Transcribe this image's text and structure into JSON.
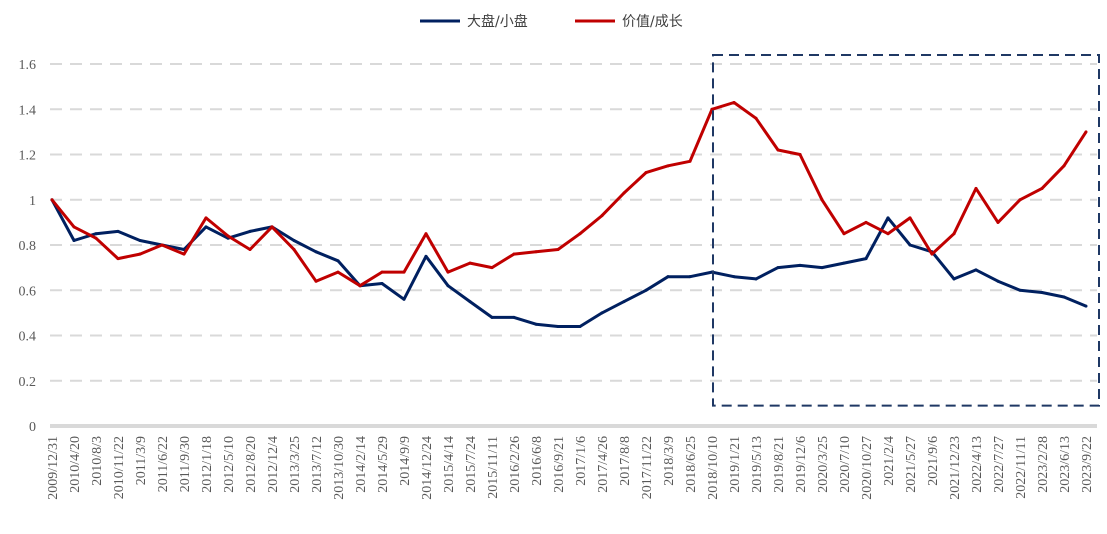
{
  "chart_data": {
    "type": "line",
    "title": "",
    "xlabel": "",
    "ylabel": "",
    "ylim": [
      0,
      1.6
    ],
    "yticks": [
      "0",
      "0.2",
      "0.4",
      "0.6",
      "0.8",
      "1",
      "1.2",
      "1.4",
      "1.6"
    ],
    "grid": "horizontal dashed",
    "legend_position": "top",
    "x": [
      "2009/12/31",
      "2010/4/20",
      "2010/8/3",
      "2010/11/22",
      "2011/3/9",
      "2011/6/22",
      "2011/9/30",
      "2012/1/18",
      "2012/5/10",
      "2012/8/20",
      "2012/12/4",
      "2013/3/25",
      "2013/7/12",
      "2013/10/30",
      "2014/2/14",
      "2014/5/29",
      "2014/9/9",
      "2014/12/24",
      "2015/4/14",
      "2015/7/24",
      "2015/11/11",
      "2016/2/26",
      "2016/6/8",
      "2016/9/21",
      "2017/1/6",
      "2017/4/26",
      "2017/8/8",
      "2017/11/22",
      "2018/3/9",
      "2018/6/25",
      "2018/10/10",
      "2019/1/21",
      "2019/5/13",
      "2019/8/21",
      "2019/12/6",
      "2020/3/25",
      "2020/7/10",
      "2020/10/27",
      "2021/2/4",
      "2021/5/27",
      "2021/9/6",
      "2021/12/23",
      "2022/4/13",
      "2022/7/27",
      "2022/11/11",
      "2023/2/28",
      "2023/6/13",
      "2023/9/22"
    ],
    "series": [
      {
        "name": "大盘/小盘",
        "color": "#002060",
        "values": [
          1.0,
          0.82,
          0.85,
          0.86,
          0.82,
          0.8,
          0.78,
          0.88,
          0.83,
          0.86,
          0.88,
          0.82,
          0.77,
          0.73,
          0.62,
          0.63,
          0.56,
          0.75,
          0.62,
          0.55,
          0.48,
          0.48,
          0.45,
          0.44,
          0.44,
          0.5,
          0.55,
          0.6,
          0.66,
          0.66,
          0.68,
          0.66,
          0.65,
          0.7,
          0.71,
          0.7,
          0.72,
          0.74,
          0.92,
          0.8,
          0.77,
          0.65,
          0.69,
          0.64,
          0.6,
          0.59,
          0.57,
          0.53
        ]
      },
      {
        "name": "价值/成长",
        "color": "#C00000",
        "values": [
          1.0,
          0.88,
          0.83,
          0.74,
          0.76,
          0.8,
          0.76,
          0.92,
          0.84,
          0.78,
          0.88,
          0.78,
          0.64,
          0.68,
          0.62,
          0.68,
          0.68,
          0.85,
          0.68,
          0.72,
          0.7,
          0.76,
          0.77,
          0.78,
          0.85,
          0.93,
          1.03,
          1.12,
          1.15,
          1.17,
          1.4,
          1.43,
          1.36,
          1.22,
          1.2,
          1.0,
          0.85,
          0.9,
          0.85,
          0.92,
          0.76,
          0.85,
          1.05,
          0.9,
          1.0,
          1.05,
          1.15,
          1.3
        ]
      }
    ],
    "annotations": [
      {
        "type": "dashed-box",
        "from": "2018/10/10",
        "to": "2023/9/22",
        "ylim": [
          0.09,
          1.64
        ],
        "color": "#1F3864"
      }
    ]
  }
}
